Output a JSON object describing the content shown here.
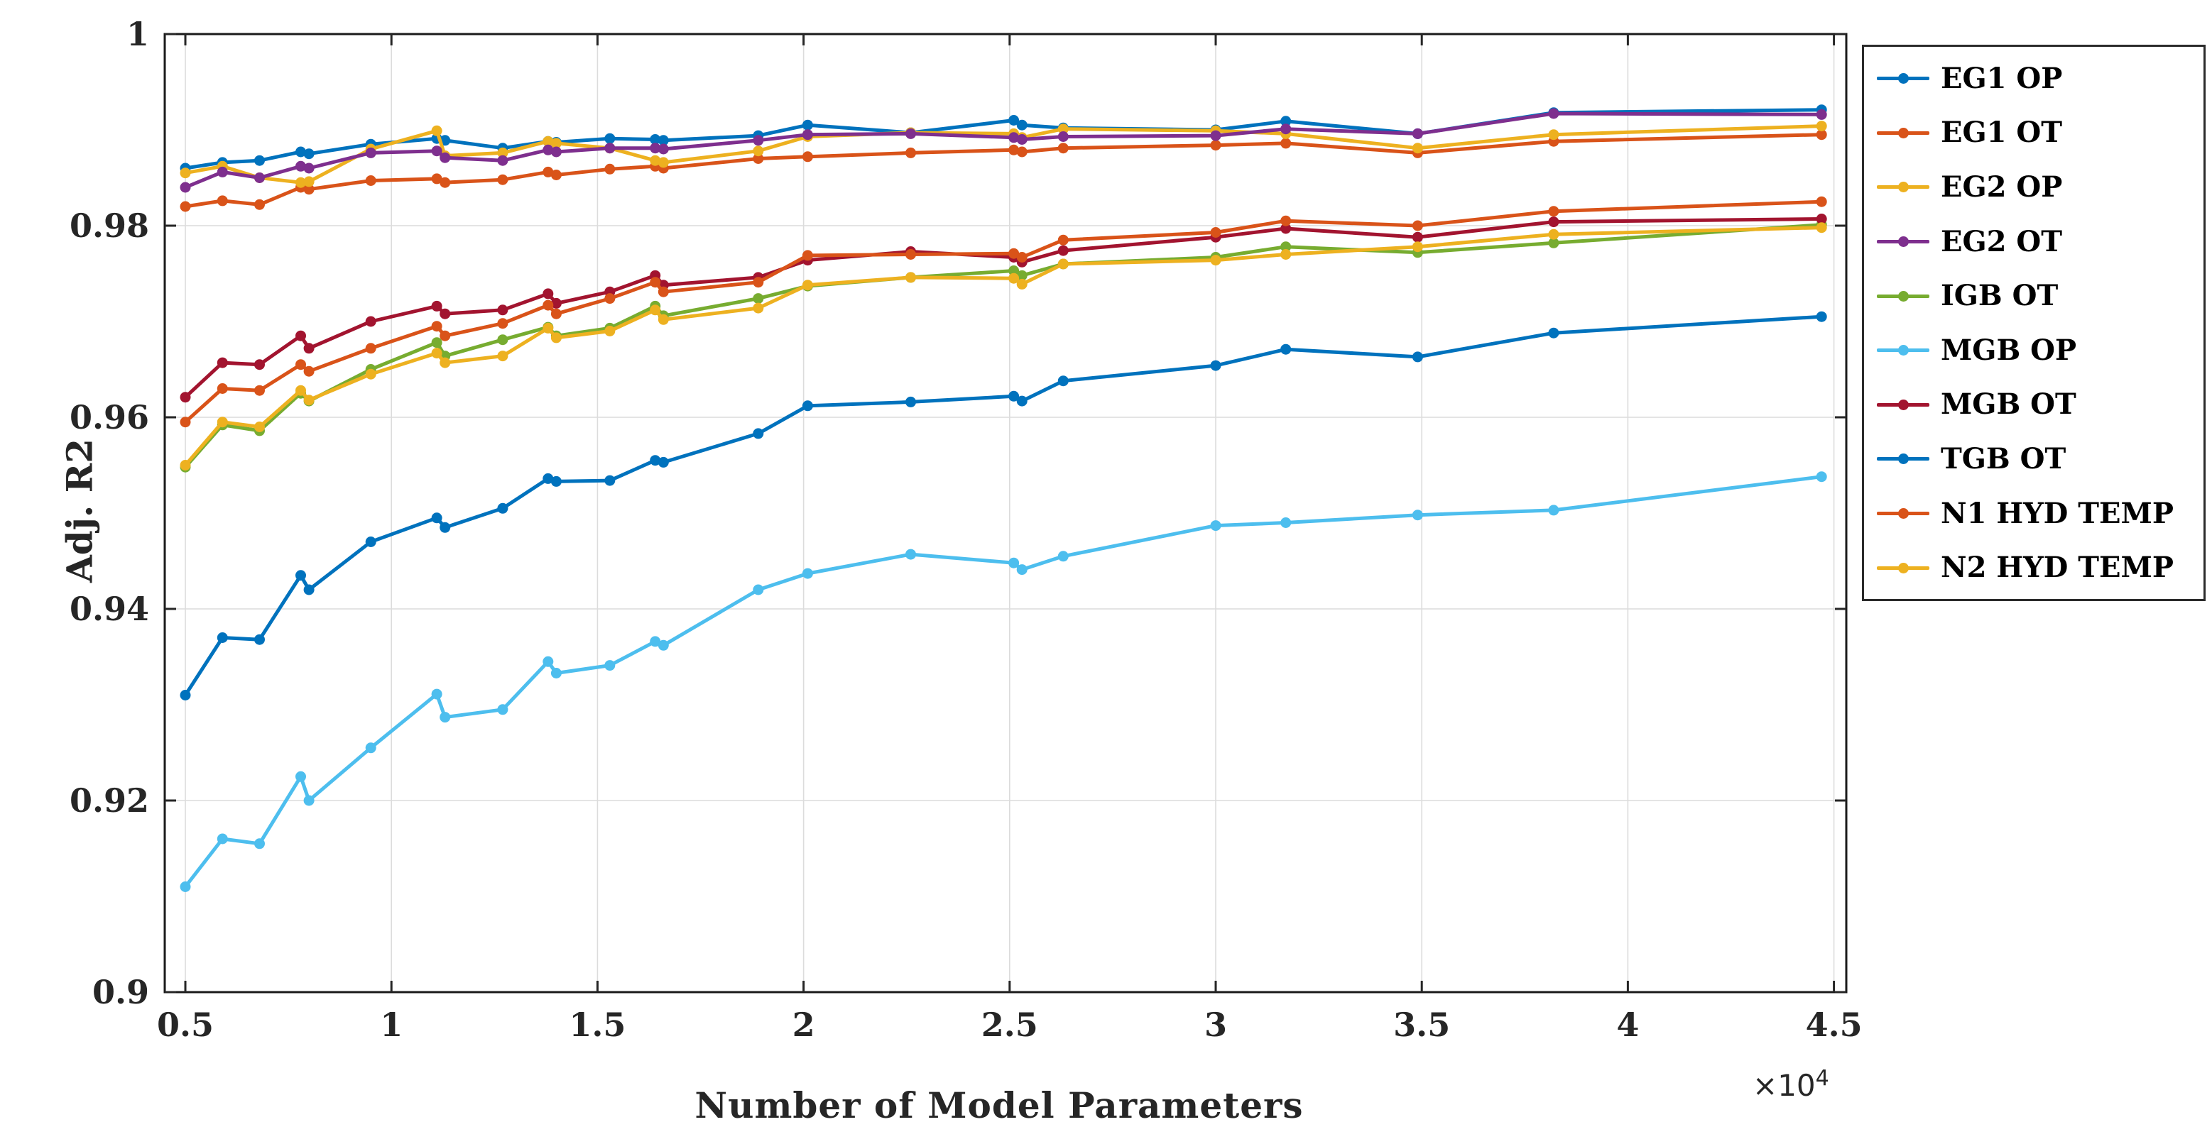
{
  "figure": {
    "background": "#ffffff",
    "axis_color": "#262626",
    "grid_color": "#dcdcdc",
    "box_color": "#1a1a1a",
    "multiplier_base": "×10",
    "multiplier_exp": "4"
  },
  "chart_data": {
    "type": "line",
    "title": "",
    "xlabel": "Number of Model Parameters",
    "ylabel": "Adj. R2",
    "x_unit_multiplier": "×10^4 (model parameters are in units of 10,000)",
    "xlim": [
      0.45,
      4.53
    ],
    "ylim": [
      0.9,
      1.0
    ],
    "x_ticks": [
      0.5,
      1,
      1.5,
      2,
      2.5,
      3,
      3.5,
      4,
      4.5
    ],
    "x_tick_labels": [
      "0.5",
      "1",
      "1.5",
      "2",
      "2.5",
      "3",
      "3.5",
      "4",
      "4.5"
    ],
    "y_ticks": [
      0.9,
      0.92,
      0.94,
      0.96,
      0.98,
      1.0
    ],
    "y_tick_labels": [
      "0.9",
      "0.92",
      "0.94",
      "0.96",
      "0.98",
      "1"
    ],
    "grid": true,
    "legend_position": "outside-right-top",
    "marker": "filled-circle",
    "x": [
      0.5,
      0.59,
      0.68,
      0.78,
      0.8,
      0.95,
      1.11,
      1.13,
      1.27,
      1.38,
      1.4,
      1.53,
      1.64,
      1.66,
      1.89,
      2.01,
      2.26,
      2.51,
      2.53,
      2.63,
      3.0,
      3.17,
      3.49,
      3.82,
      4.47
    ],
    "series": [
      {
        "name": "EG1 OP",
        "color": "#0072BD",
        "values": [
          0.986,
          0.9866,
          0.9868,
          0.9877,
          0.9875,
          0.9885,
          0.9891,
          0.9889,
          0.9881,
          0.9888,
          0.9887,
          0.9891,
          0.989,
          0.9889,
          0.9894,
          0.9905,
          0.9897,
          0.991,
          0.9905,
          0.9902,
          0.99,
          0.9909,
          0.9896,
          0.9918,
          0.9921
        ]
      },
      {
        "name": "EG1 OT",
        "color": "#D95319",
        "values": [
          0.982,
          0.9826,
          0.9822,
          0.984,
          0.9838,
          0.9847,
          0.9849,
          0.9845,
          0.9848,
          0.9856,
          0.9853,
          0.9859,
          0.9862,
          0.986,
          0.987,
          0.9872,
          0.9876,
          0.9879,
          0.9877,
          0.9881,
          0.9884,
          0.9886,
          0.9876,
          0.9888,
          0.9895
        ]
      },
      {
        "name": "EG2 OP",
        "color": "#EDB120",
        "values": [
          0.9855,
          0.9862,
          0.985,
          0.9845,
          0.9846,
          0.988,
          0.9899,
          0.9873,
          0.9876,
          0.9888,
          0.9886,
          0.9881,
          0.9868,
          0.9866,
          0.9878,
          0.9893,
          0.9897,
          0.9896,
          0.9892,
          0.9901,
          0.9899,
          0.9896,
          0.9881,
          0.9895,
          0.9904
        ]
      },
      {
        "name": "EG2 OT",
        "color": "#7E2F8E",
        "values": [
          0.984,
          0.9856,
          0.985,
          0.9862,
          0.986,
          0.9876,
          0.9878,
          0.9871,
          0.9868,
          0.9879,
          0.9877,
          0.9881,
          0.9881,
          0.988,
          0.9889,
          0.9895,
          0.9896,
          0.9892,
          0.989,
          0.9893,
          0.9894,
          0.9901,
          0.9896,
          0.9917,
          0.9916
        ]
      },
      {
        "name": "IGB OT",
        "color": "#77AC30",
        "values": [
          0.9548,
          0.9592,
          0.9586,
          0.9625,
          0.9617,
          0.965,
          0.9678,
          0.9664,
          0.9681,
          0.9694,
          0.9685,
          0.9693,
          0.9716,
          0.9706,
          0.9724,
          0.9737,
          0.9746,
          0.9753,
          0.9748,
          0.976,
          0.9767,
          0.9778,
          0.9772,
          0.9782,
          0.9801
        ]
      },
      {
        "name": "MGB OP",
        "color": "#4DBEEE",
        "values": [
          0.911,
          0.916,
          0.9155,
          0.9225,
          0.92,
          0.9255,
          0.9311,
          0.9287,
          0.9295,
          0.9345,
          0.9333,
          0.9341,
          0.9366,
          0.9362,
          0.942,
          0.9437,
          0.9457,
          0.9448,
          0.9441,
          0.9455,
          0.9487,
          0.949,
          0.9498,
          0.9503,
          0.9538
        ]
      },
      {
        "name": "MGB OT",
        "color": "#A2142F",
        "values": [
          0.9621,
          0.9657,
          0.9655,
          0.9685,
          0.9672,
          0.97,
          0.9716,
          0.9708,
          0.9712,
          0.9729,
          0.9719,
          0.9731,
          0.9748,
          0.9738,
          0.9746,
          0.9764,
          0.9773,
          0.9767,
          0.9762,
          0.9774,
          0.9788,
          0.9797,
          0.9788,
          0.9804,
          0.9807
        ]
      },
      {
        "name": "TGB OT",
        "color": "#0072BD",
        "values": [
          0.931,
          0.937,
          0.9368,
          0.9435,
          0.942,
          0.947,
          0.9495,
          0.9485,
          0.9505,
          0.9536,
          0.9533,
          0.9534,
          0.9555,
          0.9553,
          0.9583,
          0.9612,
          0.9616,
          0.9622,
          0.9617,
          0.9638,
          0.9654,
          0.9671,
          0.9663,
          0.9688,
          0.9705
        ]
      },
      {
        "name": "N1 HYD TEMP",
        "color": "#D95319",
        "values": [
          0.9595,
          0.963,
          0.9628,
          0.9655,
          0.9648,
          0.9672,
          0.9695,
          0.9685,
          0.9698,
          0.9717,
          0.9708,
          0.9724,
          0.9741,
          0.9731,
          0.9741,
          0.9769,
          0.977,
          0.9771,
          0.9767,
          0.9785,
          0.9793,
          0.9805,
          0.98,
          0.9815,
          0.9825
        ]
      },
      {
        "name": "N2 HYD TEMP",
        "color": "#EDB120",
        "values": [
          0.955,
          0.9595,
          0.959,
          0.9628,
          0.9618,
          0.9645,
          0.9667,
          0.9657,
          0.9664,
          0.9693,
          0.9683,
          0.969,
          0.9712,
          0.9702,
          0.9714,
          0.9738,
          0.9746,
          0.9745,
          0.9739,
          0.976,
          0.9764,
          0.977,
          0.9778,
          0.9791,
          0.9798
        ]
      }
    ]
  }
}
